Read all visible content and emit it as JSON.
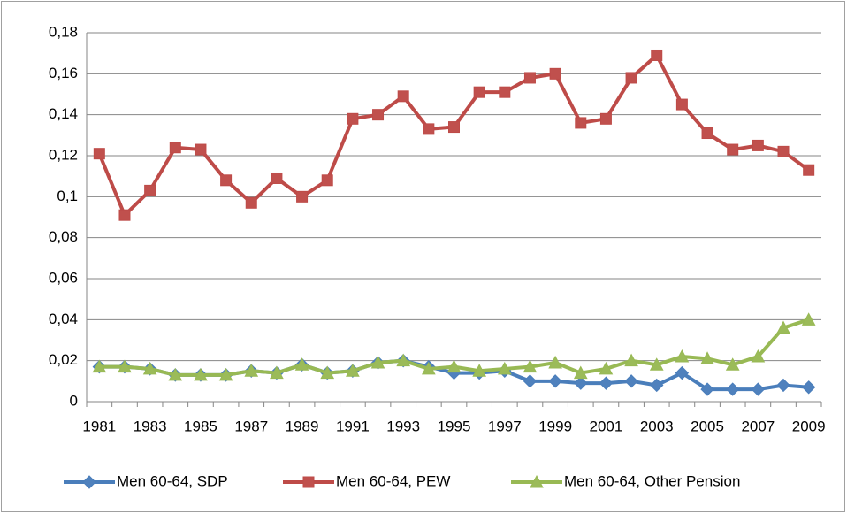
{
  "chart_data": {
    "type": "line",
    "categories": [
      "1981",
      null,
      "1983",
      null,
      "1985",
      null,
      "1987",
      null,
      "1989",
      null,
      "1991",
      null,
      "1993",
      null,
      "1995",
      null,
      "1997",
      null,
      "1999",
      null,
      "2001",
      null,
      "2003",
      null,
      "2005",
      null,
      "2007",
      null,
      "2009"
    ],
    "series": [
      {
        "name": "Men 60-64, SDP",
        "color": "#4a7ebb",
        "marker": "diamond",
        "values": [
          0.017,
          0.017,
          0.016,
          0.013,
          0.013,
          0.013,
          0.015,
          0.014,
          0.018,
          0.014,
          0.015,
          0.019,
          0.02,
          0.017,
          0.014,
          0.014,
          0.015,
          0.01,
          0.01,
          0.009,
          0.009,
          0.01,
          0.008,
          0.014,
          0.006,
          0.006,
          0.006,
          0.008,
          0.007
        ]
      },
      {
        "name": "Men 60-64, PEW",
        "color": "#be4b48",
        "marker": "square",
        "values": [
          0.121,
          0.091,
          0.103,
          0.124,
          0.123,
          0.108,
          0.097,
          0.109,
          0.1,
          0.108,
          0.138,
          0.14,
          0.149,
          0.133,
          0.134,
          0.151,
          0.151,
          0.158,
          0.16,
          0.136,
          0.138,
          0.158,
          0.169,
          0.145,
          0.131,
          0.123,
          0.125,
          0.122,
          0.113
        ]
      },
      {
        "name": "Men 60-64, Other Pension",
        "color": "#98b954",
        "marker": "triangle",
        "values": [
          0.017,
          0.017,
          0.016,
          0.013,
          0.013,
          0.013,
          0.015,
          0.014,
          0.018,
          0.014,
          0.015,
          0.019,
          0.02,
          0.016,
          0.017,
          0.015,
          0.016,
          0.017,
          0.019,
          0.014,
          0.016,
          0.02,
          0.018,
          0.022,
          0.021,
          0.018,
          0.022,
          0.036,
          0.04
        ]
      }
    ],
    "ylim": [
      0,
      0.18
    ],
    "yticks": [
      0,
      {
        "value": 0.02,
        "label": "0,02"
      },
      {
        "value": 0.04,
        "label": "0,04"
      },
      {
        "value": 0.06,
        "label": "0,06"
      },
      {
        "value": 0.08,
        "label": "0,08"
      },
      {
        "value": 0.1,
        "label": "0,1"
      },
      {
        "value": 0.12,
        "label": "0,12"
      },
      {
        "value": 0.14,
        "label": "0,14"
      },
      {
        "value": 0.16,
        "label": "0,16"
      },
      {
        "value": 0.18,
        "label": "0,18"
      }
    ],
    "grid": true,
    "legend": "bottom"
  }
}
